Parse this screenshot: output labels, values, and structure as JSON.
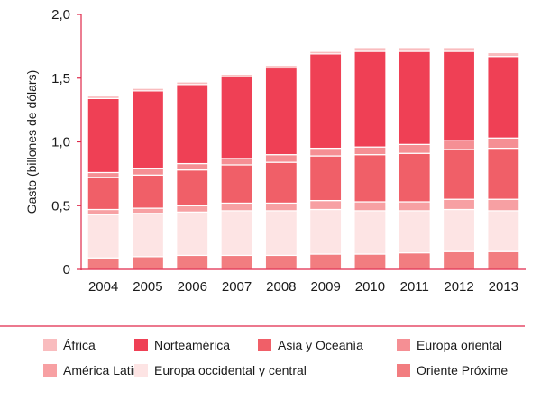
{
  "chart_data": {
    "type": "bar",
    "stacked": true,
    "ylabel": "Gasto (billones de dólars)",
    "xlabel": "",
    "ylim": [
      0,
      2.0
    ],
    "yticks": [
      0,
      0.5,
      1.0,
      1.5,
      2.0
    ],
    "ytick_labels": [
      "0",
      "0,5",
      "1,0",
      "1,5",
      "2,0"
    ],
    "categories": [
      "2004",
      "2005",
      "2006",
      "2007",
      "2008",
      "2009",
      "2010",
      "2011",
      "2012",
      "2013"
    ],
    "grid": false,
    "legend_position": "bottom",
    "series": [
      {
        "name": "Oriente Próxime",
        "color": "#f27d80",
        "values": [
          0.09,
          0.1,
          0.11,
          0.11,
          0.11,
          0.12,
          0.12,
          0.13,
          0.14,
          0.14
        ]
      },
      {
        "name": "Europa occidental y central",
        "color": "#fde4e4",
        "values": [
          0.34,
          0.34,
          0.34,
          0.35,
          0.35,
          0.35,
          0.34,
          0.33,
          0.33,
          0.32
        ]
      },
      {
        "name": "América Latina",
        "color": "#f7a0a3",
        "values": [
          0.04,
          0.04,
          0.05,
          0.06,
          0.06,
          0.07,
          0.07,
          0.07,
          0.08,
          0.09
        ]
      },
      {
        "name": "Asia y Oceanía",
        "color": "#f05f68",
        "values": [
          0.25,
          0.26,
          0.28,
          0.3,
          0.32,
          0.35,
          0.37,
          0.38,
          0.39,
          0.4
        ]
      },
      {
        "name": "Europa oriental",
        "color": "#f58f94",
        "values": [
          0.04,
          0.05,
          0.05,
          0.05,
          0.06,
          0.06,
          0.06,
          0.07,
          0.07,
          0.08
        ]
      },
      {
        "name": "Norteamérica",
        "color": "#ef4055",
        "values": [
          0.58,
          0.61,
          0.62,
          0.64,
          0.68,
          0.74,
          0.75,
          0.73,
          0.7,
          0.64
        ]
      },
      {
        "name": "África",
        "color": "#f9bcbe",
        "values": [
          0.02,
          0.02,
          0.02,
          0.02,
          0.02,
          0.02,
          0.03,
          0.03,
          0.03,
          0.03
        ]
      }
    ],
    "legend": [
      {
        "label": "África",
        "color": "#f9bcbe"
      },
      {
        "label": "Norteamérica",
        "color": "#ef4055"
      },
      {
        "label": "Asia y Oceanía",
        "color": "#f05f68"
      },
      {
        "label": "Europa oriental",
        "color": "#f58f94"
      },
      {
        "label": "América Latina",
        "color": "#f7a0a3"
      },
      {
        "label": "Europa occidental y central",
        "color": "#fde4e4"
      },
      {
        "label": "Oriente Próxime",
        "color": "#f27d80"
      }
    ],
    "axis_color": "#e0284a"
  }
}
